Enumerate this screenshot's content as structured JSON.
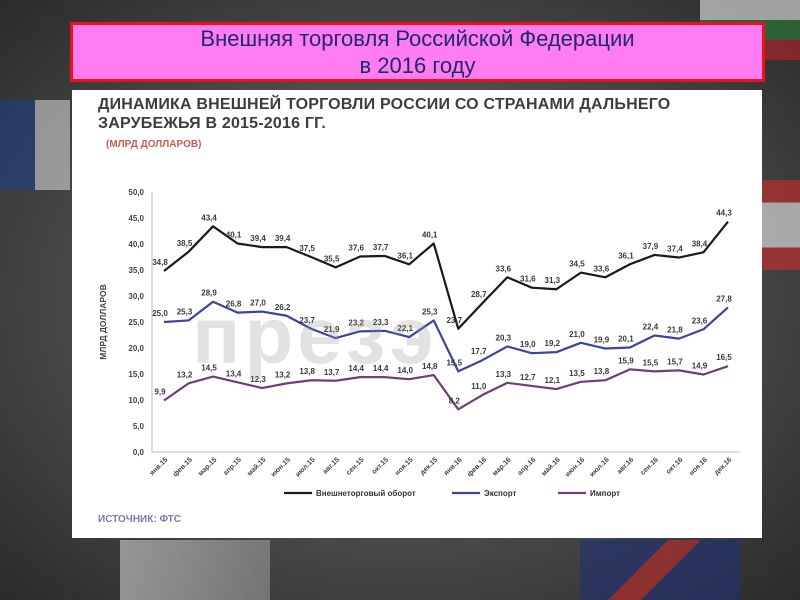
{
  "slide": {
    "title_line1": "Внешняя торговля Российской Федерации",
    "title_line2": "в 2016 году"
  },
  "chart": {
    "heading": "ДИНАМИКА ВНЕШНЕЙ ТОРГОВЛИ РОССИИ СО СТРАНАМИ ДАЛЬНЕГО ЗАРУБЕЖЬЯ В 2015-2016 ГГ.",
    "subheading": "(МЛРД ДОЛЛАРОВ)",
    "source": "ИСТОЧНИК: ФТС",
    "watermark": "презэ"
  },
  "chart_data": {
    "type": "line",
    "title": "ДИНАМИКА ВНЕШНЕЙ ТОРГОВЛИ РОССИИ СО СТРАНАМИ ДАЛЬНЕГО ЗАРУБЕЖЬЯ В 2015-2016 ГГ.",
    "ylabel": "МЛРД ДОЛЛАРОВ",
    "xlabel": "",
    "ylim": [
      0,
      50
    ],
    "yticks": [
      "0,0",
      "5,0",
      "10,0",
      "15,0",
      "20,0",
      "25,0",
      "30,0",
      "35,0",
      "40,0",
      "45,0",
      "50,0"
    ],
    "grid": false,
    "legend_position": "bottom",
    "categories": [
      "янв.15",
      "фев.15",
      "мар.15",
      "апр.15",
      "май.15",
      "июн.15",
      "июл.15",
      "авг.15",
      "сен.15",
      "окт.15",
      "ноя.15",
      "дек.15",
      "янв.16",
      "фев.16",
      "мар.16",
      "апр.16",
      "май.16",
      "июн.16",
      "июл.16",
      "авг.16",
      "сен.16",
      "окт.16",
      "ноя.16",
      "дек.16"
    ],
    "series": [
      {
        "name": "Внешнеторговый оборот",
        "color": "#1a1a1a",
        "values": [
          34.8,
          38.5,
          43.4,
          40.1,
          39.4,
          39.4,
          37.5,
          35.5,
          37.6,
          37.7,
          36.1,
          40.1,
          23.7,
          28.7,
          33.6,
          31.6,
          31.3,
          34.5,
          33.6,
          36.1,
          37.9,
          37.4,
          38.4,
          44.3
        ],
        "labels": [
          "34,8",
          "38,5",
          "43,4",
          "40,1",
          "39,4",
          "39,4",
          "37,5",
          "35,5",
          "37,6",
          "37,7",
          "36,1",
          "40,1",
          "23,7",
          "28,7",
          "33,6",
          "31,6",
          "31,3",
          "34,5",
          "33,6",
          "36,1",
          "37,9",
          "37,4",
          "38,4",
          "44,3"
        ]
      },
      {
        "name": "Экспорт",
        "color": "#3b44a0",
        "values": [
          25.0,
          25.3,
          28.9,
          26.8,
          27.0,
          26.2,
          23.7,
          21.9,
          23.2,
          23.3,
          22.1,
          25.3,
          15.5,
          17.7,
          20.3,
          19.0,
          19.2,
          21.0,
          19.9,
          20.1,
          22.4,
          21.8,
          23.6,
          27.8
        ],
        "labels": [
          "25,0",
          "25,3",
          "28,9",
          "26,8",
          "27,0",
          "26,2",
          "23,7",
          "21,9",
          "23,2",
          "23,3",
          "22,1",
          "25,3",
          "15,5",
          "17,7",
          "20,3",
          "19,0",
          "19,2",
          "21,0",
          "19,9",
          "20,1",
          "22,4",
          "21,8",
          "23,6",
          "27,8"
        ]
      },
      {
        "name": "Импорт",
        "color": "#6e3f72",
        "values": [
          9.9,
          13.2,
          14.5,
          13.4,
          12.3,
          13.2,
          13.8,
          13.7,
          14.4,
          14.4,
          14.0,
          14.8,
          8.2,
          11.0,
          13.3,
          12.7,
          12.1,
          13.5,
          13.8,
          15.9,
          15.5,
          15.7,
          14.9,
          16.5
        ],
        "labels": [
          "9,9",
          "13,2",
          "14,5",
          "13,4",
          "12,3",
          "13,2",
          "13,8",
          "13,7",
          "14,4",
          "14,4",
          "14,0",
          "14,8",
          "8,2",
          "11,0",
          "13,3",
          "12,7",
          "12,1",
          "13,5",
          "13,8",
          "15,9",
          "15,5",
          "15,7",
          "14,9",
          "16,5"
        ]
      }
    ]
  }
}
